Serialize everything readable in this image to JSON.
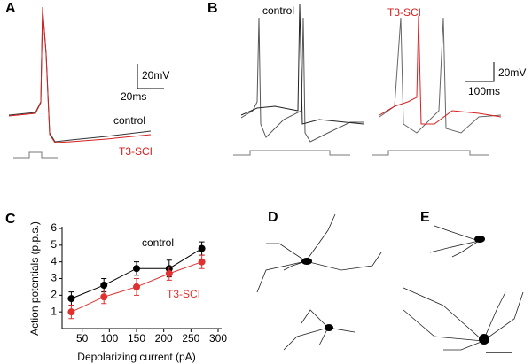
{
  "panels": {
    "a": {
      "label": "A",
      "scale_voltage": "20mV",
      "scale_time": "20ms",
      "legend": [
        "control",
        "T3-SCI"
      ]
    },
    "b": {
      "label": "B",
      "scale_voltage": "20mV",
      "scale_time": "100ms",
      "legend": [
        "control",
        "T3-SCI"
      ]
    },
    "d": {
      "label": "D"
    },
    "e": {
      "label": "E"
    }
  },
  "chart_data": {
    "type": "line",
    "panel_label": "C",
    "xlabel": "Depolarizing current (pA)",
    "ylabel": "Action potentials (p.p.s.)",
    "x": [
      30,
      90,
      150,
      210,
      270
    ],
    "series": [
      {
        "name": "control",
        "color": "#000000",
        "values": [
          1.8,
          2.6,
          3.6,
          3.6,
          4.8
        ],
        "errors": [
          0.4,
          0.4,
          0.4,
          0.5,
          0.4
        ]
      },
      {
        "name": "T3-SCI",
        "color": "#e03030",
        "values": [
          1.0,
          1.9,
          2.5,
          3.3,
          4.0
        ],
        "errors": [
          0.4,
          0.4,
          0.5,
          0.4,
          0.4
        ]
      }
    ],
    "xlim": [
      0,
      300
    ],
    "xticks": [
      50,
      100,
      150,
      200,
      250,
      300
    ],
    "ylim": [
      0,
      6
    ],
    "yticks": [
      1,
      2,
      3,
      4,
      5,
      6
    ]
  }
}
